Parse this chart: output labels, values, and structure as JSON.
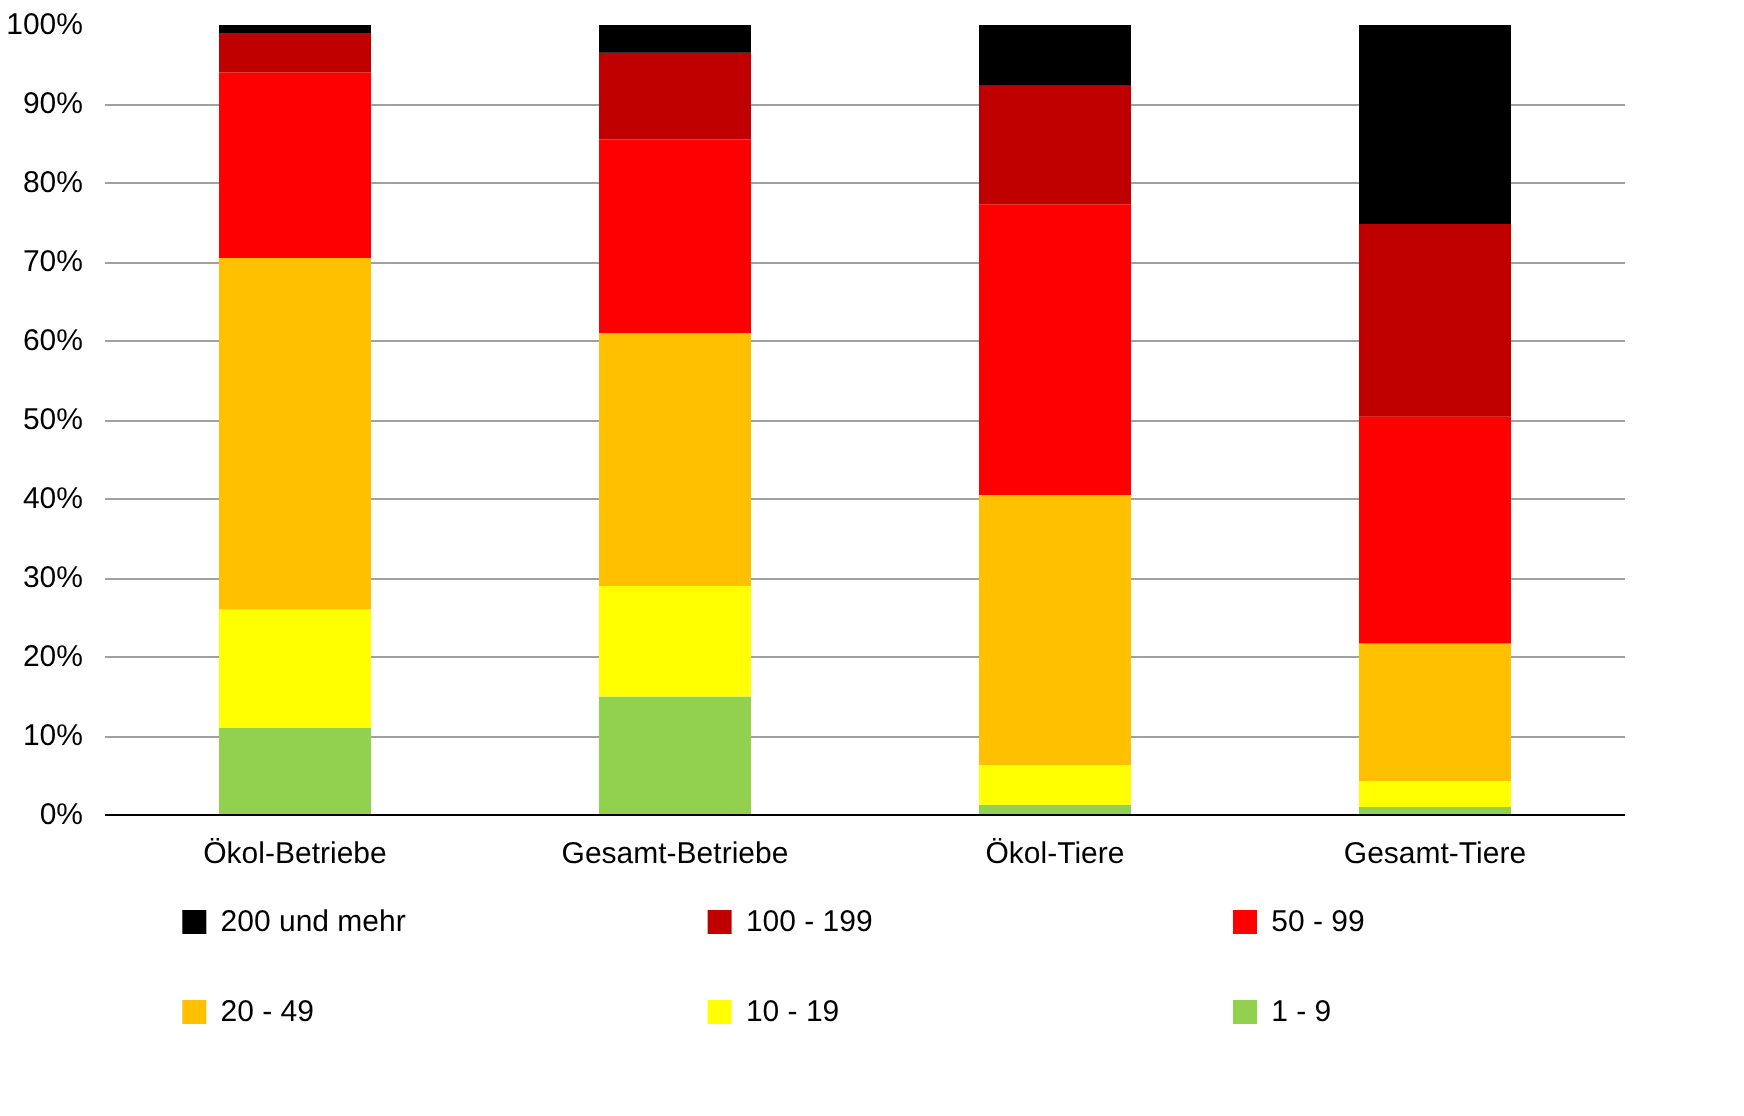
{
  "chart_data": {
    "type": "bar",
    "stacked": true,
    "categories": [
      "Ökol-Betriebe",
      "Gesamt-Betriebe",
      "Ökol-Tiere",
      "Gesamt-Tiere"
    ],
    "series": [
      {
        "name": "1   -   9",
        "color": "#92d050",
        "values": [
          11,
          15,
          1.3,
          1
        ]
      },
      {
        "name": "10   -   19",
        "color": "#ffff00",
        "values": [
          15,
          14,
          5,
          3.3
        ]
      },
      {
        "name": "20   -   49",
        "color": "#ffc000",
        "values": [
          44.5,
          32,
          34.2,
          17.4
        ]
      },
      {
        "name": "50   -   99",
        "color": "#ff0000",
        "values": [
          23.5,
          24.5,
          36.8,
          28.7
        ]
      },
      {
        "name": "100   -   199",
        "color": "#c00000",
        "values": [
          5,
          11,
          15,
          24.4
        ]
      },
      {
        "name": "200 und mehr",
        "color": "#000000",
        "values": [
          1,
          3.5,
          7.7,
          25.2
        ]
      }
    ],
    "ylim": [
      0,
      100
    ],
    "yticks": [
      {
        "value": 0,
        "label": "0%"
      },
      {
        "value": 10,
        "label": "10%"
      },
      {
        "value": 20,
        "label": "20%"
      },
      {
        "value": 30,
        "label": "30%"
      },
      {
        "value": 40,
        "label": "40%"
      },
      {
        "value": 50,
        "label": "50%"
      },
      {
        "value": 60,
        "label": "60%"
      },
      {
        "value": 70,
        "label": "70%"
      },
      {
        "value": 80,
        "label": "80%"
      },
      {
        "value": 90,
        "label": "90%"
      },
      {
        "value": 100,
        "label": "100%"
      }
    ],
    "grid": "y",
    "legend": "bottom"
  }
}
